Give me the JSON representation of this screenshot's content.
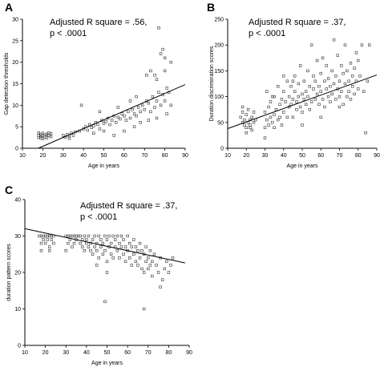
{
  "chart_data": [
    {
      "panel": "A",
      "type": "scatter",
      "annotation": [
        "Adjusted R square = .56,",
        "p < .0001"
      ],
      "xlabel": "Age in years",
      "ylabel": "Gap detection thresholds",
      "xlim": [
        10,
        90
      ],
      "ylim": [
        0,
        30
      ],
      "xticks": [
        10,
        20,
        30,
        40,
        50,
        60,
        70,
        80,
        90
      ],
      "yticks": [
        0,
        5,
        10,
        15,
        20,
        25,
        30
      ],
      "regression": {
        "x": [
          10,
          90
        ],
        "y": [
          -1.6,
          14.8
        ]
      },
      "points": [
        [
          18,
          3
        ],
        [
          18,
          2.5
        ],
        [
          19,
          3.2
        ],
        [
          19,
          2.8
        ],
        [
          20,
          3
        ],
        [
          20,
          3.5
        ],
        [
          21,
          2.6
        ],
        [
          21,
          3.1
        ],
        [
          22,
          3.3
        ],
        [
          22,
          2.9
        ],
        [
          23,
          3
        ],
        [
          23,
          3.6
        ],
        [
          24,
          2.7
        ],
        [
          18,
          3.6
        ],
        [
          20,
          2.2
        ],
        [
          22,
          2.4
        ],
        [
          24,
          3.4
        ],
        [
          19,
          2.4
        ],
        [
          30,
          3
        ],
        [
          31,
          2.6
        ],
        [
          32,
          3.2
        ],
        [
          33,
          2.9
        ],
        [
          34,
          3.5
        ],
        [
          35,
          3
        ],
        [
          33,
          2.3
        ],
        [
          36,
          3.8
        ],
        [
          38,
          4
        ],
        [
          40,
          4.5
        ],
        [
          41,
          5
        ],
        [
          42,
          4.2
        ],
        [
          43,
          5.5
        ],
        [
          44,
          4.8
        ],
        [
          45,
          5.2
        ],
        [
          46,
          6
        ],
        [
          47,
          5.5
        ],
        [
          48,
          4.5
        ],
        [
          49,
          6.5
        ],
        [
          50,
          5.8
        ],
        [
          51,
          6.2
        ],
        [
          52,
          7
        ],
        [
          53,
          5.5
        ],
        [
          54,
          6.5
        ],
        [
          55,
          7.5
        ],
        [
          56,
          6
        ],
        [
          57,
          7.2
        ],
        [
          58,
          6.8
        ],
        [
          59,
          8
        ],
        [
          60,
          7.5
        ],
        [
          61,
          6.5
        ],
        [
          62,
          8.5
        ],
        [
          63,
          7
        ],
        [
          64,
          9
        ],
        [
          65,
          8
        ],
        [
          66,
          7.5
        ],
        [
          67,
          9.5
        ],
        [
          68,
          8.5
        ],
        [
          69,
          10
        ],
        [
          70,
          9
        ],
        [
          71,
          11
        ],
        [
          72,
          10.5
        ],
        [
          73,
          8.5
        ],
        [
          74,
          12
        ],
        [
          75,
          9.5
        ],
        [
          76,
          11
        ],
        [
          77,
          13
        ],
        [
          78,
          10
        ],
        [
          79,
          12.5
        ],
        [
          80,
          11
        ],
        [
          81,
          14
        ],
        [
          82,
          13
        ],
        [
          75,
          17
        ],
        [
          76,
          16
        ],
        [
          78,
          22
        ],
        [
          80,
          18
        ],
        [
          77,
          28
        ],
        [
          79,
          23
        ],
        [
          83,
          20
        ],
        [
          73,
          18
        ],
        [
          71,
          17
        ],
        [
          80,
          21
        ],
        [
          55,
          3
        ],
        [
          60,
          4
        ],
        [
          65,
          5
        ],
        [
          45,
          3.5
        ],
        [
          50,
          4
        ],
        [
          68,
          6
        ],
        [
          72,
          6.5
        ],
        [
          76,
          7
        ],
        [
          83,
          10
        ],
        [
          81,
          8
        ],
        [
          39,
          10
        ],
        [
          48,
          8.5
        ],
        [
          57,
          9.5
        ],
        [
          63,
          11
        ],
        [
          66,
          12
        ]
      ]
    },
    {
      "panel": "B",
      "type": "scatter",
      "annotation": [
        "Adjusted R square = .37,",
        "p < .0001"
      ],
      "xlabel": "Age in years",
      "ylabel": "Duration discrimination scores",
      "xlim": [
        10,
        90
      ],
      "ylim": [
        0,
        250
      ],
      "xticks": [
        10,
        20,
        30,
        40,
        50,
        60,
        70,
        80,
        90
      ],
      "yticks": [
        0,
        50,
        100,
        150,
        200,
        250
      ],
      "regression": {
        "x": [
          10,
          90
        ],
        "y": [
          38,
          142
        ]
      },
      "points": [
        [
          17,
          60
        ],
        [
          18,
          50
        ],
        [
          18,
          70
        ],
        [
          19,
          45
        ],
        [
          19,
          55
        ],
        [
          20,
          65
        ],
        [
          20,
          40
        ],
        [
          21,
          50
        ],
        [
          21,
          75
        ],
        [
          22,
          55
        ],
        [
          22,
          45
        ],
        [
          23,
          60
        ],
        [
          23,
          35
        ],
        [
          24,
          50
        ],
        [
          24,
          70
        ],
        [
          25,
          55
        ],
        [
          18,
          80
        ],
        [
          20,
          30
        ],
        [
          22,
          40
        ],
        [
          30,
          40
        ],
        [
          30,
          70
        ],
        [
          31,
          55
        ],
        [
          31,
          110
        ],
        [
          32,
          45
        ],
        [
          32,
          80
        ],
        [
          33,
          60
        ],
        [
          33,
          90
        ],
        [
          34,
          50
        ],
        [
          34,
          100
        ],
        [
          35,
          65
        ],
        [
          35,
          40
        ],
        [
          36,
          75
        ],
        [
          37,
          55
        ],
        [
          37,
          120
        ],
        [
          38,
          85
        ],
        [
          38,
          60
        ],
        [
          39,
          95
        ],
        [
          39,
          45
        ],
        [
          40,
          70
        ],
        [
          40,
          110
        ],
        [
          41,
          90
        ],
        [
          42,
          60
        ],
        [
          42,
          130
        ],
        [
          43,
          100
        ],
        [
          43,
          80
        ],
        [
          44,
          85
        ],
        [
          44,
          120
        ],
        [
          45,
          95
        ],
        [
          45,
          60
        ],
        [
          46,
          140
        ],
        [
          46,
          110
        ],
        [
          47,
          75
        ],
        [
          47,
          90
        ],
        [
          48,
          100
        ],
        [
          48,
          125
        ],
        [
          49,
          80
        ],
        [
          49,
          160
        ],
        [
          50,
          105
        ],
        [
          50,
          70
        ],
        [
          51,
          95
        ],
        [
          51,
          130
        ],
        [
          52,
          110
        ],
        [
          52,
          85
        ],
        [
          53,
          150
        ],
        [
          53,
          100
        ],
        [
          54,
          120
        ],
        [
          54,
          75
        ],
        [
          55,
          200
        ],
        [
          55,
          90
        ],
        [
          56,
          115
        ],
        [
          56,
          140
        ],
        [
          57,
          95
        ],
        [
          57,
          130
        ],
        [
          58,
          105
        ],
        [
          58,
          170
        ],
        [
          59,
          85
        ],
        [
          59,
          120
        ],
        [
          60,
          110
        ],
        [
          60,
          145
        ],
        [
          61,
          95
        ],
        [
          61,
          175
        ],
        [
          62,
          130
        ],
        [
          62,
          80
        ],
        [
          63,
          115
        ],
        [
          63,
          160
        ],
        [
          64,
          100
        ],
        [
          64,
          135
        ],
        [
          65,
          120
        ],
        [
          65,
          90
        ],
        [
          66,
          150
        ],
        [
          66,
          105
        ],
        [
          67,
          210
        ],
        [
          67,
          125
        ],
        [
          68,
          95
        ],
        [
          68,
          140
        ],
        [
          69,
          115
        ],
        [
          69,
          180
        ],
        [
          70,
          130
        ],
        [
          70,
          100
        ],
        [
          71,
          160
        ],
        [
          71,
          110
        ],
        [
          72,
          85
        ],
        [
          72,
          145
        ],
        [
          73,
          125
        ],
        [
          73,
          200
        ],
        [
          74,
          100
        ],
        [
          74,
          150
        ],
        [
          75,
          130
        ],
        [
          75,
          110
        ],
        [
          76,
          165
        ],
        [
          76,
          95
        ],
        [
          77,
          140
        ],
        [
          77,
          120
        ],
        [
          78,
          155
        ],
        [
          78,
          105
        ],
        [
          79,
          185
        ],
        [
          79,
          130
        ],
        [
          80,
          170
        ],
        [
          80,
          115
        ],
        [
          81,
          140
        ],
        [
          82,
          200
        ],
        [
          83,
          110
        ],
        [
          84,
          30
        ],
        [
          85,
          130
        ],
        [
          86,
          200
        ],
        [
          70,
          80
        ],
        [
          60,
          60
        ],
        [
          50,
          45
        ],
        [
          45,
          130
        ],
        [
          40,
          140
        ],
        [
          35,
          100
        ],
        [
          30,
          20
        ]
      ]
    },
    {
      "panel": "C",
      "type": "scatter",
      "annotation": [
        "Adjusted R square = .37,",
        "p < .0001"
      ],
      "xlabel": "Age in years",
      "ylabel": "duration pattern scores",
      "xlim": [
        10,
        90
      ],
      "ylim": [
        0,
        40
      ],
      "xticks": [
        10,
        20,
        30,
        40,
        50,
        60,
        70,
        80,
        90
      ],
      "yticks": [
        0,
        10,
        20,
        30,
        40
      ],
      "regression": {
        "x": [
          10,
          88
        ],
        "y": [
          32,
          22.6
        ]
      },
      "points": [
        [
          17,
          30
        ],
        [
          18,
          28
        ],
        [
          18,
          30
        ],
        [
          19,
          29
        ],
        [
          19,
          30
        ],
        [
          20,
          30
        ],
        [
          20,
          28
        ],
        [
          21,
          30
        ],
        [
          21,
          29
        ],
        [
          22,
          30
        ],
        [
          22,
          27
        ],
        [
          23,
          30
        ],
        [
          23,
          29
        ],
        [
          24,
          30
        ],
        [
          24,
          28
        ],
        [
          18,
          26
        ],
        [
          22,
          26
        ],
        [
          30,
          30
        ],
        [
          31,
          28
        ],
        [
          31,
          30
        ],
        [
          32,
          29
        ],
        [
          32,
          30
        ],
        [
          33,
          30
        ],
        [
          33,
          27
        ],
        [
          34,
          30
        ],
        [
          34,
          28
        ],
        [
          35,
          30
        ],
        [
          35,
          29
        ],
        [
          36,
          30
        ],
        [
          37,
          28
        ],
        [
          37,
          30
        ],
        [
          38,
          29
        ],
        [
          38,
          27
        ],
        [
          39,
          30
        ],
        [
          39,
          26
        ],
        [
          40,
          29
        ],
        [
          40,
          28
        ],
        [
          41,
          30
        ],
        [
          41,
          27
        ],
        [
          42,
          28
        ],
        [
          42,
          26
        ],
        [
          43,
          29
        ],
        [
          43,
          25
        ],
        [
          44,
          27
        ],
        [
          44,
          30
        ],
        [
          45,
          28
        ],
        [
          45,
          26
        ],
        [
          46,
          30
        ],
        [
          46,
          24
        ],
        [
          47,
          27
        ],
        [
          47,
          29
        ],
        [
          48,
          25
        ],
        [
          48,
          28
        ],
        [
          49,
          30
        ],
        [
          49,
          26
        ],
        [
          50,
          29
        ],
        [
          50,
          23
        ],
        [
          51,
          27
        ],
        [
          51,
          30
        ],
        [
          52,
          25
        ],
        [
          52,
          28
        ],
        [
          53,
          30
        ],
        [
          53,
          24
        ],
        [
          54,
          27
        ],
        [
          54,
          29
        ],
        [
          55,
          26
        ],
        [
          55,
          30
        ],
        [
          56,
          24
        ],
        [
          56,
          28
        ],
        [
          57,
          27
        ],
        [
          57,
          30
        ],
        [
          58,
          25
        ],
        [
          58,
          29
        ],
        [
          59,
          23
        ],
        [
          59,
          27
        ],
        [
          60,
          30
        ],
        [
          60,
          26
        ],
        [
          61,
          24
        ],
        [
          61,
          28
        ],
        [
          62,
          27
        ],
        [
          62,
          22
        ],
        [
          63,
          25
        ],
        [
          63,
          29
        ],
        [
          64,
          23
        ],
        [
          64,
          27
        ],
        [
          65,
          26
        ],
        [
          65,
          22
        ],
        [
          66,
          28
        ],
        [
          66,
          24
        ],
        [
          67,
          21
        ],
        [
          67,
          26
        ],
        [
          68,
          25
        ],
        [
          68,
          20
        ],
        [
          69,
          27
        ],
        [
          69,
          23
        ],
        [
          70,
          24
        ],
        [
          70,
          21
        ],
        [
          71,
          26
        ],
        [
          71,
          22
        ],
        [
          72,
          23
        ],
        [
          72,
          19
        ],
        [
          73,
          25
        ],
        [
          74,
          22
        ],
        [
          75,
          20
        ],
        [
          76,
          24
        ],
        [
          77,
          18
        ],
        [
          78,
          21
        ],
        [
          79,
          23
        ],
        [
          80,
          20
        ],
        [
          81,
          22
        ],
        [
          82,
          24
        ],
        [
          76,
          16
        ],
        [
          68,
          10
        ],
        [
          49,
          12
        ],
        [
          50,
          20
        ],
        [
          45,
          22
        ],
        [
          30,
          26
        ]
      ]
    }
  ]
}
